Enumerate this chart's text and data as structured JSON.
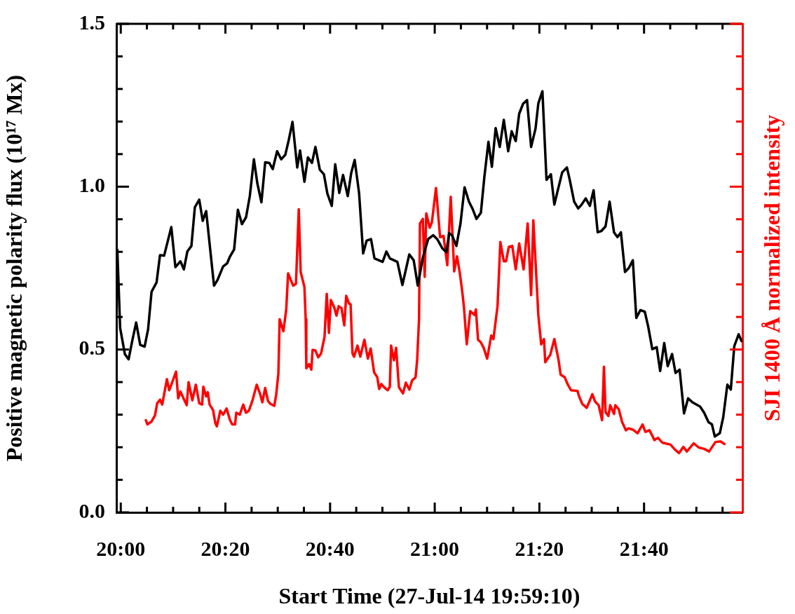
{
  "chart_data": {
    "type": "line",
    "xlabel": "Start Time (27-Jul-14 19:59:10)",
    "ylabel": "Positive magnetic polarity flux (10¹⁷ Mx)",
    "y2label": "SJI 1400 Å normalized intensity",
    "legend": false,
    "xlim": [
      19.986,
      21.98
    ],
    "xticks": [
      {
        "value": 20,
        "label": "20:00"
      },
      {
        "value": 20.0833,
        "label": null
      },
      {
        "value": 20.1667,
        "label": null
      },
      {
        "value": 20.25,
        "label": null
      },
      {
        "value": 20.3333,
        "label": "20:20"
      },
      {
        "value": 20.4167,
        "label": null
      },
      {
        "value": 20.5,
        "label": null
      },
      {
        "value": 20.5833,
        "label": null
      },
      {
        "value": 20.6667,
        "label": "20:40"
      },
      {
        "value": 20.75,
        "label": null
      },
      {
        "value": 20.8333,
        "label": null
      },
      {
        "value": 20.9167,
        "label": null
      },
      {
        "value": 21,
        "label": "21:00"
      },
      {
        "value": 21.0833,
        "label": null
      },
      {
        "value": 21.1667,
        "label": null
      },
      {
        "value": 21.25,
        "label": null
      },
      {
        "value": 21.3333,
        "label": "21:20"
      },
      {
        "value": 21.4167,
        "label": null
      },
      {
        "value": 21.5,
        "label": null
      },
      {
        "value": 21.5833,
        "label": null
      },
      {
        "value": 21.6667,
        "label": "21:40"
      },
      {
        "value": 21.75,
        "label": null
      },
      {
        "value": 21.8333,
        "label": null
      },
      {
        "value": 21.9167,
        "label": null
      }
    ],
    "ylim": [
      0,
      1.5
    ],
    "yticks": [
      {
        "value": 0,
        "label": "0.0"
      },
      {
        "value": 0.1,
        "label": null
      },
      {
        "value": 0.2,
        "label": null
      },
      {
        "value": 0.3,
        "label": null
      },
      {
        "value": 0.4,
        "label": null
      },
      {
        "value": 0.5,
        "label": "0.5"
      },
      {
        "value": 0.6,
        "label": null
      },
      {
        "value": 0.7,
        "label": null
      },
      {
        "value": 0.8,
        "label": null
      },
      {
        "value": 0.9,
        "label": null
      },
      {
        "value": 1,
        "label": "1.0"
      },
      {
        "value": 1.1,
        "label": null
      },
      {
        "value": 1.2,
        "label": null
      },
      {
        "value": 1.3,
        "label": null
      },
      {
        "value": 1.4,
        "label": null
      },
      {
        "value": 1.5,
        "label": "1.5"
      }
    ],
    "series": [
      {
        "color": "#000000",
        "x": [
          19.989,
          19.998,
          20.013,
          20.025,
          20.036,
          20.049,
          20.062,
          20.076,
          20.087,
          20.098,
          20.114,
          20.125,
          20.138,
          20.161,
          20.174,
          20.19,
          20.201,
          20.212,
          20.225,
          20.236,
          20.25,
          20.261,
          20.272,
          20.297,
          20.308,
          20.326,
          20.339,
          20.348,
          20.361,
          20.373,
          20.386,
          20.399,
          20.411,
          20.424,
          20.435,
          20.448,
          20.46,
          20.473,
          20.484,
          20.498,
          20.511,
          20.524,
          20.535,
          20.547,
          20.562,
          20.571,
          20.585,
          20.596,
          20.609,
          20.62,
          20.634,
          20.647,
          20.658,
          20.672,
          20.683,
          20.696,
          20.708,
          20.723,
          20.734,
          20.745,
          20.759,
          20.772,
          20.783,
          20.797,
          20.808,
          20.834,
          20.846,
          20.857,
          20.881,
          20.897,
          20.919,
          20.933,
          20.946,
          20.962,
          20.979,
          20.995,
          21.008,
          21.024,
          21.037,
          21.046,
          21.055,
          21.069,
          21.082,
          21.095,
          21.109,
          21.12,
          21.133,
          21.147,
          21.158,
          21.171,
          21.182,
          21.194,
          21.207,
          21.22,
          21.234,
          21.245,
          21.258,
          21.269,
          21.281,
          21.294,
          21.307,
          21.321,
          21.33,
          21.343,
          21.356,
          21.37,
          21.381,
          21.392,
          21.406,
          21.421,
          21.43,
          21.444,
          21.457,
          21.468,
          21.481,
          21.494,
          21.506,
          21.519,
          21.531,
          21.544,
          21.557,
          21.571,
          21.582,
          21.593,
          21.606,
          21.618,
          21.631,
          21.642,
          21.655,
          21.669,
          21.68,
          21.693,
          21.707,
          21.718,
          21.731,
          21.742,
          21.756,
          21.767,
          21.78,
          21.794,
          21.807,
          21.821,
          21.845,
          21.858,
          21.872,
          21.883,
          21.892,
          21.908,
          21.919,
          21.932,
          21.943,
          21.954,
          21.968,
          21.977
        ],
        "values": [
          0.807,
          0.566,
          0.486,
          0.47,
          0.524,
          0.583,
          0.514,
          0.509,
          0.562,
          0.677,
          0.706,
          0.79,
          0.788,
          0.876,
          0.753,
          0.771,
          0.746,
          0.801,
          0.818,
          0.937,
          0.96,
          0.895,
          0.925,
          0.696,
          0.713,
          0.755,
          0.765,
          0.786,
          0.807,
          0.929,
          0.885,
          0.906,
          0.971,
          1.084,
          1.01,
          0.952,
          1.075,
          1.073,
          1.054,
          1.109,
          1.084,
          1.098,
          1.143,
          1.199,
          1.059,
          1.111,
          1.015,
          1.09,
          1.073,
          1.122,
          1.052,
          1.038,
          0.979,
          0.941,
          1.069,
          0.981,
          1.036,
          0.971,
          1.042,
          1.082,
          0.981,
          0.795,
          0.834,
          0.839,
          0.78,
          0.769,
          0.801,
          0.78,
          0.769,
          0.698,
          0.792,
          0.774,
          0.696,
          0.782,
          0.839,
          0.851,
          0.839,
          0.811,
          0.799,
          0.857,
          0.851,
          0.818,
          0.887,
          0.998,
          0.954,
          0.933,
          0.901,
          0.92,
          1.029,
          1.138,
          1.061,
          1.18,
          1.122,
          1.205,
          1.109,
          1.17,
          1.14,
          1.224,
          1.254,
          1.266,
          1.122,
          1.178,
          1.256,
          1.293,
          1.021,
          1.038,
          0.945,
          0.989,
          1.044,
          1.059,
          1.021,
          0.954,
          0.933,
          0.945,
          0.964,
          0.941,
          0.989,
          0.86,
          0.864,
          0.878,
          0.954,
          0.86,
          0.845,
          0.86,
          0.738,
          0.75,
          0.774,
          0.597,
          0.621,
          0.616,
          0.57,
          0.501,
          0.507,
          0.434,
          0.52,
          0.449,
          0.486,
          0.428,
          0.438,
          0.304,
          0.35,
          0.338,
          0.325,
          0.306,
          0.277,
          0.27,
          0.233,
          0.243,
          0.293,
          0.392,
          0.377,
          0.51,
          0.547,
          0.526
        ]
      },
      {
        "color": "#ff0000",
        "x": [
          20.08,
          20.085,
          20.098,
          20.109,
          20.116,
          20.125,
          20.132,
          20.147,
          20.154,
          20.161,
          20.176,
          20.183,
          20.19,
          20.199,
          20.21,
          20.216,
          20.228,
          20.239,
          20.25,
          20.259,
          20.263,
          20.272,
          20.277,
          20.283,
          20.294,
          20.301,
          20.306,
          20.317,
          20.326,
          20.337,
          20.348,
          20.355,
          20.364,
          20.368,
          20.379,
          20.39,
          20.399,
          20.408,
          20.419,
          20.433,
          20.444,
          20.451,
          20.46,
          20.469,
          20.477,
          20.489,
          20.495,
          20.502,
          20.506,
          20.518,
          20.527,
          20.533,
          20.549,
          20.558,
          20.567,
          20.573,
          20.585,
          20.589,
          20.591,
          20.6,
          20.607,
          20.611,
          20.62,
          20.629,
          20.638,
          20.649,
          20.656,
          20.663,
          20.669,
          20.68,
          20.687,
          20.694,
          20.703,
          20.712,
          20.718,
          20.727,
          20.732,
          20.738,
          20.743,
          20.754,
          20.763,
          20.776,
          20.787,
          20.796,
          20.807,
          20.817,
          20.823,
          20.83,
          20.839,
          20.85,
          20.857,
          20.861,
          20.87,
          20.877,
          20.886,
          20.899,
          20.908,
          20.919,
          20.928,
          20.939,
          20.944,
          20.95,
          20.953,
          20.962,
          20.968,
          20.973,
          20.984,
          20.991,
          21.004,
          21.017,
          21.028,
          21.04,
          21.051,
          21.062,
          21.071,
          21.08,
          21.087,
          21.093,
          21.102,
          21.113,
          21.127,
          21.131,
          21.138,
          21.147,
          21.156,
          21.167,
          21.18,
          21.187,
          21.2,
          21.209,
          21.22,
          21.227,
          21.236,
          21.247,
          21.258,
          21.269,
          21.283,
          21.296,
          21.307,
          21.314,
          21.323,
          21.33,
          21.339,
          21.348,
          21.352,
          21.368,
          21.381,
          21.394,
          21.401,
          21.414,
          21.423,
          21.434,
          21.455,
          21.459,
          21.47,
          21.484,
          21.495,
          21.502,
          21.511,
          21.522,
          21.533,
          21.539,
          21.544,
          21.553,
          21.559,
          21.571,
          21.575,
          21.586,
          21.597,
          21.609,
          21.617,
          21.631,
          21.646,
          21.662,
          21.671,
          21.684,
          21.7,
          21.711,
          21.725,
          21.751,
          21.765,
          21.778,
          21.792,
          21.803,
          21.825,
          21.841,
          21.858,
          21.874,
          21.894,
          21.91,
          21.923
        ],
        "values": [
          0.283,
          0.27,
          0.279,
          0.298,
          0.335,
          0.346,
          0.331,
          0.409,
          0.375,
          0.392,
          0.432,
          0.35,
          0.371,
          0.352,
          0.329,
          0.4,
          0.344,
          0.392,
          0.335,
          0.331,
          0.386,
          0.356,
          0.369,
          0.331,
          0.314,
          0.275,
          0.264,
          0.312,
          0.3,
          0.319,
          0.283,
          0.27,
          0.27,
          0.306,
          0.3,
          0.331,
          0.306,
          0.312,
          0.342,
          0.392,
          0.363,
          0.338,
          0.382,
          0.342,
          0.333,
          0.327,
          0.361,
          0.426,
          0.593,
          0.556,
          0.623,
          0.734,
          0.696,
          0.702,
          0.931,
          0.738,
          0.692,
          0.593,
          0.442,
          0.455,
          0.438,
          0.499,
          0.497,
          0.476,
          0.488,
          0.539,
          0.671,
          0.551,
          0.652,
          0.629,
          0.604,
          0.633,
          0.627,
          0.574,
          0.665,
          0.641,
          0.639,
          0.488,
          0.478,
          0.512,
          0.478,
          0.53,
          0.472,
          0.503,
          0.43,
          0.415,
          0.379,
          0.394,
          0.384,
          0.375,
          0.386,
          0.512,
          0.467,
          0.505,
          0.384,
          0.365,
          0.398,
          0.377,
          0.405,
          0.415,
          0.467,
          0.593,
          0.887,
          0.901,
          0.723,
          0.918,
          0.874,
          0.891,
          0.996,
          0.845,
          0.849,
          0.759,
          0.969,
          0.74,
          0.786,
          0.734,
          0.683,
          0.631,
          0.516,
          0.618,
          0.606,
          0.623,
          0.53,
          0.522,
          0.505,
          0.472,
          0.543,
          0.532,
          0.633,
          0.83,
          0.771,
          0.771,
          0.815,
          0.818,
          0.746,
          0.826,
          0.746,
          0.887,
          0.667,
          0.897,
          0.734,
          0.606,
          0.516,
          0.532,
          0.461,
          0.484,
          0.532,
          0.47,
          0.423,
          0.415,
          0.394,
          0.375,
          0.373,
          0.358,
          0.333,
          0.321,
          0.346,
          0.363,
          0.34,
          0.329,
          0.283,
          0.447,
          0.308,
          0.296,
          0.329,
          0.302,
          0.329,
          0.317,
          0.277,
          0.252,
          0.258,
          0.254,
          0.243,
          0.27,
          0.247,
          0.252,
          0.222,
          0.229,
          0.214,
          0.208,
          0.193,
          0.182,
          0.201,
          0.187,
          0.212,
          0.199,
          0.195,
          0.187,
          0.216,
          0.218,
          0.21
        ]
      }
    ]
  }
}
